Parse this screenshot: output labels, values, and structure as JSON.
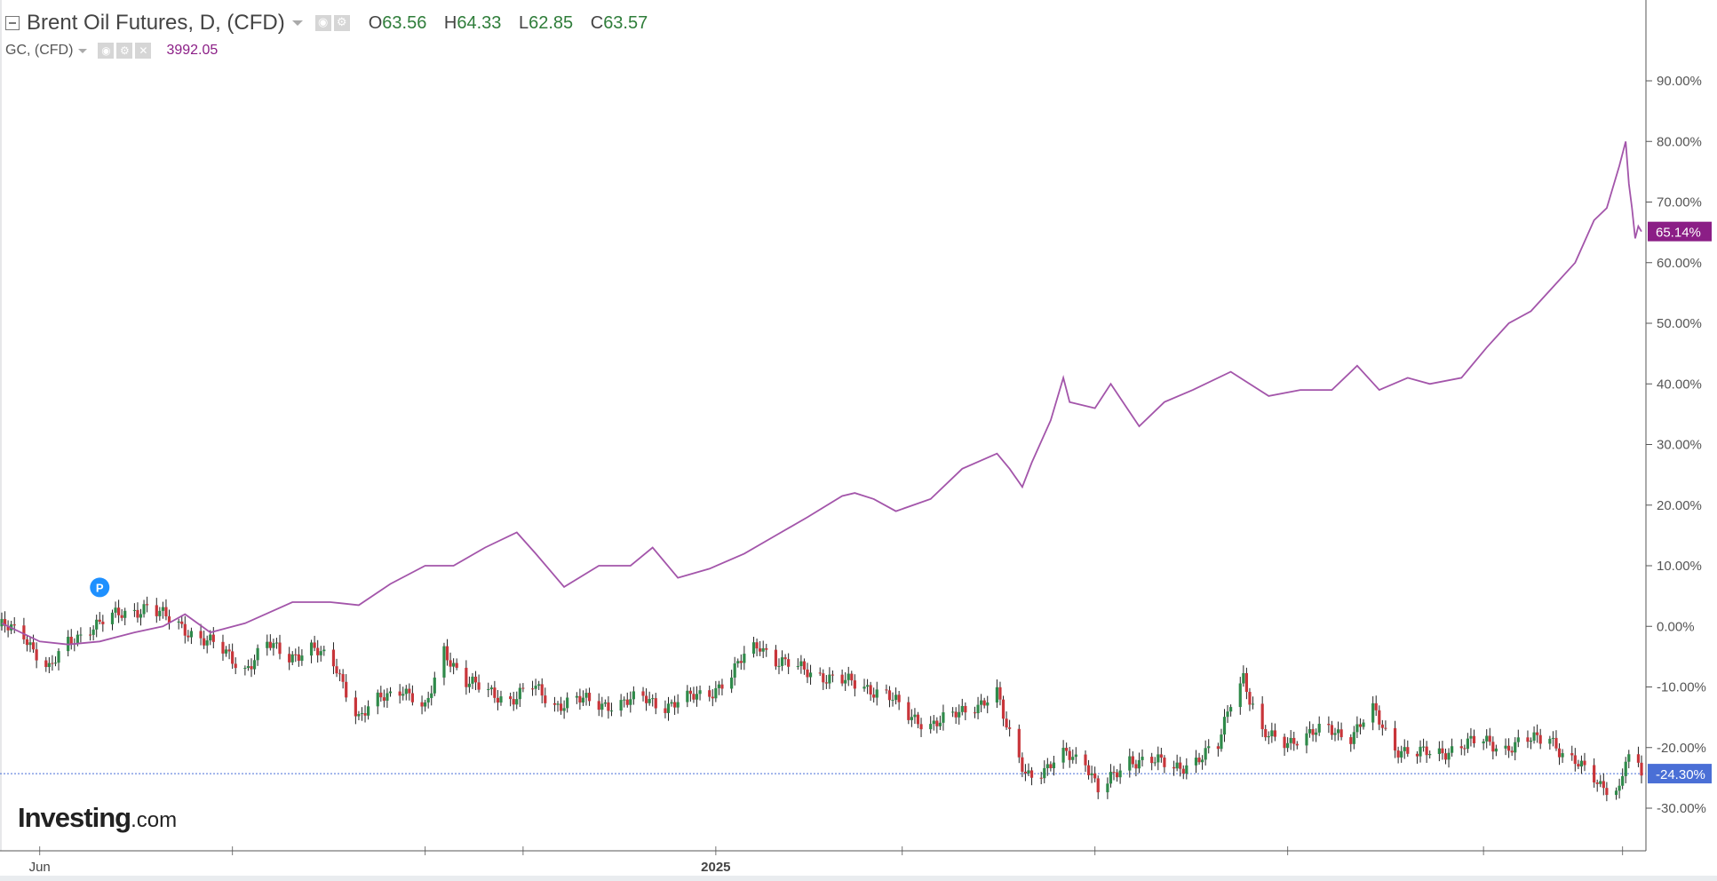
{
  "legend": {
    "main_title": "Brent Oil Futures, D, (CFD)",
    "ohlc": [
      {
        "key": "O",
        "value": "63.56"
      },
      {
        "key": "H",
        "value": "64.33"
      },
      {
        "key": "L",
        "value": "62.85"
      },
      {
        "key": "C",
        "value": "63.57"
      }
    ],
    "compare_title": "GC, (CFD)",
    "compare_value": "3992.05"
  },
  "brand": {
    "name": "Investing",
    "suffix": ".com"
  },
  "colors": {
    "gold_line": "#a355aa",
    "gold_label_bg": "#8b1e86",
    "up_candle": "#2f8a4a",
    "down_candle": "#c8353a",
    "wick": "#222222",
    "price_line": "#4a6fd6",
    "marker": "#1e90ff"
  },
  "markers": [
    {
      "letter": "P",
      "x": "2024-06-20",
      "y": 3.2
    }
  ],
  "chart_data": {
    "type": "line",
    "ylim": [
      -38,
      92
    ],
    "y_unit": "%",
    "y_ticks": [
      "90.00%",
      "80.00%",
      "70.00%",
      "60.00%",
      "50.00%",
      "40.00%",
      "30.00%",
      "20.00%",
      "10.00%",
      "0.00%",
      "-10.00%",
      "-20.00%",
      "-30.00%"
    ],
    "y_tick_values": [
      90,
      80,
      70,
      60,
      50,
      40,
      30,
      20,
      10,
      0,
      -10,
      -20,
      -30
    ],
    "x_range": [
      "2024-05-20",
      "2025-10-21"
    ],
    "x_tick_labels": [
      {
        "x": "2024-06-01",
        "label": "Jun"
      },
      {
        "x": "2025-01-01",
        "label": "2025"
      }
    ],
    "x_gridline_dates": [
      "2024-06-01",
      "2024-08-01",
      "2024-10-01",
      "2024-11-01",
      "2025-01-01",
      "2025-03-01",
      "2025-05-01",
      "2025-07-01",
      "2025-09-01",
      "2025-10-15"
    ],
    "grid": false,
    "last_values": [
      {
        "series": "GC, (CFD)",
        "label": "65.14%",
        "value": 65.14
      },
      {
        "series": "Brent Oil Futures, D, (CFD)",
        "label": "-24.30%",
        "value": -24.3
      }
    ],
    "series": [
      {
        "name": "GC, (CFD)",
        "kind": "line",
        "points": [
          [
            "2024-05-20",
            0.5
          ],
          [
            "2024-06-01",
            -2.5
          ],
          [
            "2024-06-10",
            -3
          ],
          [
            "2024-06-20",
            -2.5
          ],
          [
            "2024-07-01",
            -1
          ],
          [
            "2024-07-10",
            0
          ],
          [
            "2024-07-17",
            2
          ],
          [
            "2024-07-25",
            -1
          ],
          [
            "2024-08-05",
            0.5
          ],
          [
            "2024-08-20",
            4
          ],
          [
            "2024-09-01",
            4
          ],
          [
            "2024-09-10",
            3.5
          ],
          [
            "2024-09-20",
            7
          ],
          [
            "2024-10-01",
            10
          ],
          [
            "2024-10-10",
            10
          ],
          [
            "2024-10-20",
            13
          ],
          [
            "2024-10-30",
            15.5
          ],
          [
            "2024-11-05",
            12
          ],
          [
            "2024-11-14",
            6.5
          ],
          [
            "2024-11-25",
            10
          ],
          [
            "2024-12-05",
            10
          ],
          [
            "2024-12-12",
            13
          ],
          [
            "2024-12-20",
            8
          ],
          [
            "2024-12-30",
            9.5
          ],
          [
            "2025-01-10",
            12
          ],
          [
            "2025-01-20",
            15
          ],
          [
            "2025-01-30",
            18
          ],
          [
            "2025-02-10",
            21.5
          ],
          [
            "2025-02-14",
            22
          ],
          [
            "2025-02-20",
            21
          ],
          [
            "2025-02-27",
            19
          ],
          [
            "2025-03-10",
            21
          ],
          [
            "2025-03-20",
            26
          ],
          [
            "2025-03-31",
            28.5
          ],
          [
            "2025-04-04",
            26
          ],
          [
            "2025-04-08",
            23
          ],
          [
            "2025-04-11",
            27
          ],
          [
            "2025-04-17",
            34
          ],
          [
            "2025-04-21",
            41
          ],
          [
            "2025-04-23",
            37
          ],
          [
            "2025-05-01",
            36
          ],
          [
            "2025-05-06",
            40
          ],
          [
            "2025-05-15",
            33
          ],
          [
            "2025-05-23",
            37
          ],
          [
            "2025-06-01",
            39
          ],
          [
            "2025-06-13",
            42
          ],
          [
            "2025-06-25",
            38
          ],
          [
            "2025-07-05",
            39
          ],
          [
            "2025-07-15",
            39
          ],
          [
            "2025-07-23",
            43
          ],
          [
            "2025-07-30",
            39
          ],
          [
            "2025-08-08",
            41
          ],
          [
            "2025-08-15",
            40
          ],
          [
            "2025-08-25",
            41
          ],
          [
            "2025-09-02",
            46
          ],
          [
            "2025-09-09",
            50
          ],
          [
            "2025-09-16",
            52
          ],
          [
            "2025-09-23",
            56
          ],
          [
            "2025-09-30",
            60
          ],
          [
            "2025-10-06",
            67
          ],
          [
            "2025-10-10",
            69
          ],
          [
            "2025-10-14",
            76
          ],
          [
            "2025-10-16",
            80
          ],
          [
            "2025-10-17",
            73
          ],
          [
            "2025-10-18",
            69
          ],
          [
            "2025-10-19",
            64
          ],
          [
            "2025-10-20",
            66
          ],
          [
            "2025-10-21",
            65.14
          ]
        ]
      },
      {
        "name": "Brent Oil Futures, D, (CFD)",
        "kind": "candlestick",
        "points": [
          [
            "2024-05-20",
            0
          ],
          [
            "2024-05-27",
            -1.5
          ],
          [
            "2024-06-04",
            -7
          ],
          [
            "2024-06-10",
            -3
          ],
          [
            "2024-06-17",
            0
          ],
          [
            "2024-06-24",
            1.5
          ],
          [
            "2024-07-01",
            2.5
          ],
          [
            "2024-07-05",
            3.5
          ],
          [
            "2024-07-12",
            1
          ],
          [
            "2024-07-19",
            -1
          ],
          [
            "2024-07-26",
            -3
          ],
          [
            "2024-08-05",
            -7
          ],
          [
            "2024-08-12",
            -3
          ],
          [
            "2024-08-19",
            -5
          ],
          [
            "2024-08-26",
            -3.5
          ],
          [
            "2024-09-03",
            -7
          ],
          [
            "2024-09-10",
            -15
          ],
          [
            "2024-09-17",
            -12
          ],
          [
            "2024-09-24",
            -10
          ],
          [
            "2024-10-01",
            -14
          ],
          [
            "2024-10-07",
            -4
          ],
          [
            "2024-10-14",
            -9
          ],
          [
            "2024-10-21",
            -11
          ],
          [
            "2024-10-28",
            -12
          ],
          [
            "2024-11-04",
            -10
          ],
          [
            "2024-11-11",
            -13
          ],
          [
            "2024-11-18",
            -12
          ],
          [
            "2024-11-25",
            -13
          ],
          [
            "2024-12-02",
            -12.5
          ],
          [
            "2024-12-09",
            -12
          ],
          [
            "2024-12-16",
            -13
          ],
          [
            "2024-12-23",
            -12
          ],
          [
            "2024-12-30",
            -11
          ],
          [
            "2025-01-06",
            -8
          ],
          [
            "2025-01-10",
            -5
          ],
          [
            "2025-01-15",
            -3
          ],
          [
            "2025-01-20",
            -5.5
          ],
          [
            "2025-01-27",
            -7
          ],
          [
            "2025-02-03",
            -8
          ],
          [
            "2025-02-10",
            -9
          ],
          [
            "2025-02-17",
            -10
          ],
          [
            "2025-02-24",
            -11
          ],
          [
            "2025-03-03",
            -15
          ],
          [
            "2025-03-10",
            -16
          ],
          [
            "2025-03-17",
            -15
          ],
          [
            "2025-03-24",
            -13
          ],
          [
            "2025-03-31",
            -11
          ],
          [
            "2025-04-03",
            -17
          ],
          [
            "2025-04-09",
            -24
          ],
          [
            "2025-04-15",
            -24
          ],
          [
            "2025-04-22",
            -21
          ],
          [
            "2025-04-28",
            -22
          ],
          [
            "2025-05-02",
            -27
          ],
          [
            "2025-05-05",
            -26
          ],
          [
            "2025-05-12",
            -22
          ],
          [
            "2025-05-19",
            -22
          ],
          [
            "2025-05-26",
            -23.5
          ],
          [
            "2025-06-02",
            -22
          ],
          [
            "2025-06-09",
            -20
          ],
          [
            "2025-06-13",
            -12
          ],
          [
            "2025-06-17",
            -8
          ],
          [
            "2025-06-19",
            -12
          ],
          [
            "2025-06-23",
            -18
          ],
          [
            "2025-06-30",
            -19
          ],
          [
            "2025-07-07",
            -18
          ],
          [
            "2025-07-14",
            -17
          ],
          [
            "2025-07-21",
            -18
          ],
          [
            "2025-07-28",
            -14
          ],
          [
            "2025-08-04",
            -20
          ],
          [
            "2025-08-11",
            -21
          ],
          [
            "2025-08-18",
            -21
          ],
          [
            "2025-08-25",
            -19.5
          ],
          [
            "2025-09-01",
            -19
          ],
          [
            "2025-09-08",
            -20
          ],
          [
            "2025-09-15",
            -19
          ],
          [
            "2025-09-22",
            -18
          ],
          [
            "2025-09-26",
            -21
          ],
          [
            "2025-10-01",
            -23
          ],
          [
            "2025-10-08",
            -26
          ],
          [
            "2025-10-14",
            -27
          ],
          [
            "2025-10-16",
            -22
          ],
          [
            "2025-10-18",
            -22.5
          ],
          [
            "2025-10-21",
            -24.3
          ]
        ]
      }
    ]
  }
}
